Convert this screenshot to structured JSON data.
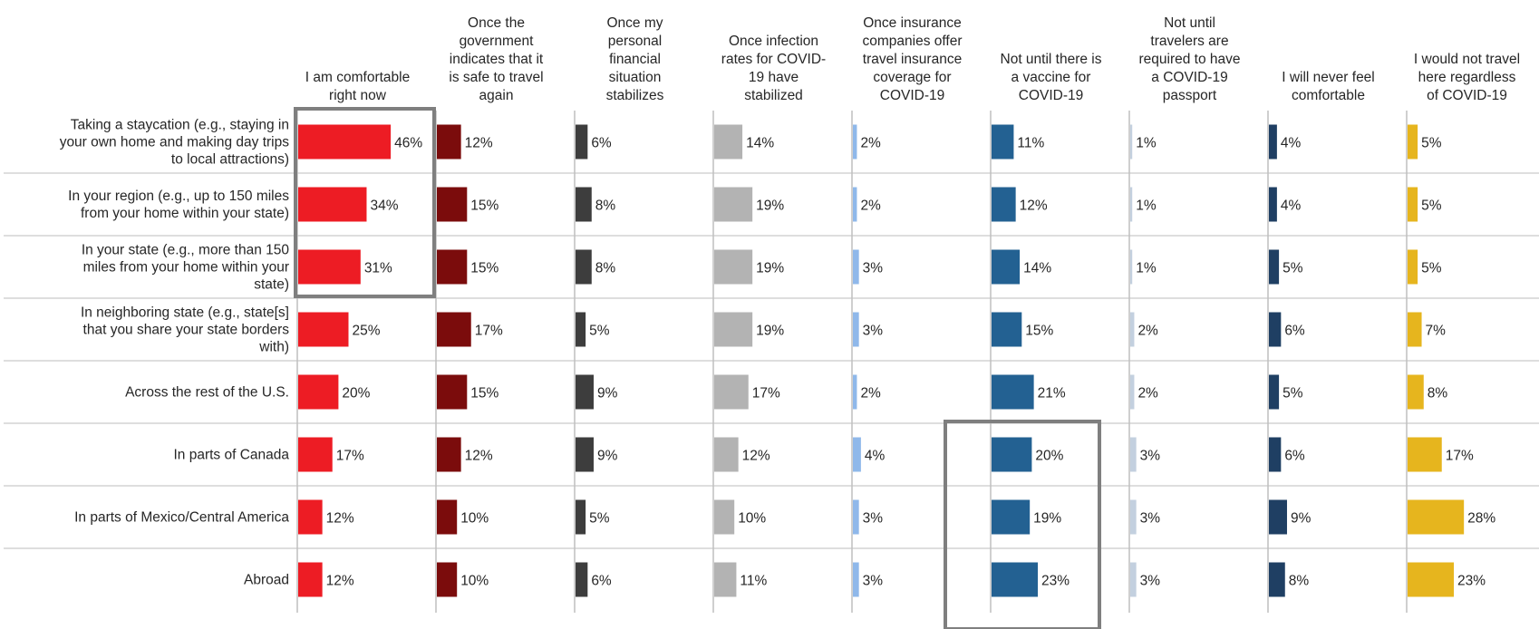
{
  "chart_data": {
    "type": "bar",
    "orientation": "horizontal",
    "layout": "small-multiples",
    "xlim": [
      0,
      100
    ],
    "categories": [
      [
        "Taking a staycation (e.g., staying in",
        "your own home and making day trips",
        "to local attractions)"
      ],
      [
        "In your region (e.g., up to 150 miles",
        "from your home within your state)"
      ],
      [
        "In your state (e.g., more than 150",
        "miles from your home within your",
        "state)"
      ],
      [
        "In neighboring state (e.g., state[s]",
        "that you share your state borders",
        "with)"
      ],
      [
        "Across the rest of the U.S."
      ],
      [
        "In parts of Canada"
      ],
      [
        "In parts of Mexico/Central America"
      ],
      [
        "Abroad"
      ]
    ],
    "series": [
      {
        "name": [
          "I am comfortable",
          "right now"
        ],
        "color": "#ed1c24",
        "values": [
          46,
          34,
          31,
          25,
          20,
          17,
          12,
          12
        ]
      },
      {
        "name": [
          "Once the",
          "government",
          "indicates that it",
          "is safe to travel",
          "again"
        ],
        "color": "#7b0c0c",
        "values": [
          12,
          15,
          15,
          17,
          15,
          12,
          10,
          10
        ]
      },
      {
        "name": [
          "Once my",
          "personal",
          "financial",
          "situation",
          "stabilizes"
        ],
        "color": "#3d3d3d",
        "values": [
          6,
          8,
          8,
          5,
          9,
          9,
          5,
          6
        ]
      },
      {
        "name": [
          "Once infection",
          "rates for COVID-",
          "19 have",
          "stabilized"
        ],
        "color": "#b3b3b3",
        "values": [
          14,
          19,
          19,
          19,
          17,
          12,
          10,
          11
        ]
      },
      {
        "name": [
          "Once insurance",
          "companies offer",
          "travel insurance",
          "coverage for",
          "COVID-19"
        ],
        "color": "#8fb8ea",
        "values": [
          2,
          2,
          3,
          3,
          2,
          4,
          3,
          3
        ]
      },
      {
        "name": [
          "Not until there is",
          "a vaccine for",
          "COVID-19"
        ],
        "color": "#236192",
        "values": [
          11,
          12,
          14,
          15,
          21,
          20,
          19,
          23
        ]
      },
      {
        "name": [
          "Not until",
          "travelers are",
          "required to have",
          "a COVID-19",
          "passport"
        ],
        "color": "#c3d0df",
        "values": [
          1,
          1,
          1,
          2,
          2,
          3,
          3,
          3
        ]
      },
      {
        "name": [
          "I will never feel",
          "comfortable"
        ],
        "color": "#1f3f63",
        "values": [
          4,
          4,
          5,
          6,
          5,
          6,
          9,
          8
        ]
      },
      {
        "name": [
          "I would not travel",
          "here regardless",
          "of COVID-19"
        ],
        "color": "#e6b51e",
        "values": [
          5,
          5,
          5,
          7,
          8,
          17,
          28,
          23
        ]
      }
    ],
    "value_suffix": "%",
    "highlights": [
      {
        "series": 0,
        "rows": [
          0,
          2
        ]
      },
      {
        "series": 5,
        "rows": [
          5,
          7
        ]
      }
    ],
    "legend": "none",
    "grid": false
  }
}
